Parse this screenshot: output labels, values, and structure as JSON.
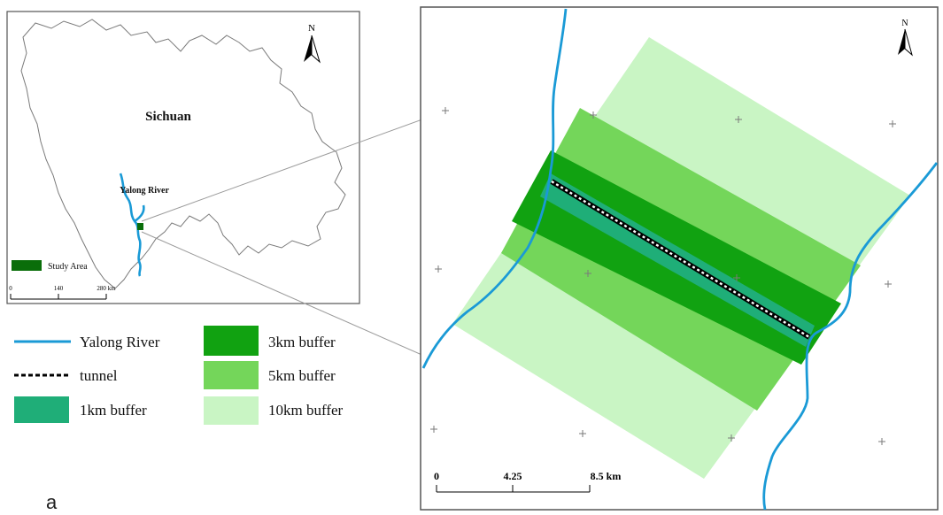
{
  "overview_map": {
    "region_label": "Sichuan",
    "river_label": "Yalong River",
    "study_area_legend": "Study Area",
    "study_area_color": "#0a6e0a",
    "north_label": "N",
    "scale_labels": [
      "0",
      "140",
      "280 km"
    ]
  },
  "legend": {
    "items": [
      {
        "label": "Yalong River",
        "kind": "line",
        "color": "#1a9ad6"
      },
      {
        "label": "tunnel",
        "kind": "dashed-line",
        "color": "#000000"
      },
      {
        "label": "1km buffer",
        "kind": "swatch",
        "color": "#1fae78"
      },
      {
        "label": "3km buffer",
        "kind": "swatch",
        "color": "#11a211"
      },
      {
        "label": "5km buffer",
        "kind": "swatch",
        "color": "#74d65a"
      },
      {
        "label": "10km buffer",
        "kind": "swatch",
        "color": "#c9f5c4"
      }
    ]
  },
  "detail_map": {
    "north_label": "N",
    "scale_labels": [
      "0",
      "4.25",
      "8.5 km"
    ],
    "river_color": "#1a9ad6"
  },
  "panel_label": "a"
}
